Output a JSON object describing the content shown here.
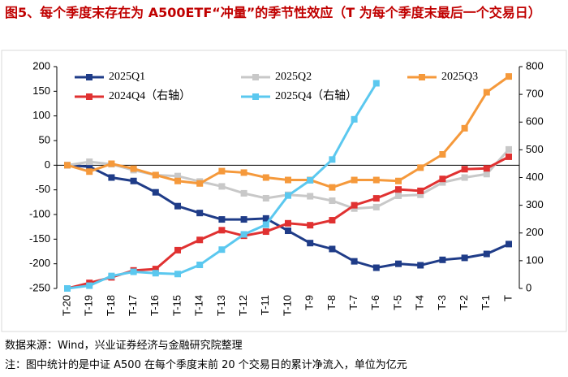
{
  "chart_data": {
    "type": "line",
    "title": "图5、每个季度末存在为 A500ETF“冲量”的季节性效应（T 为每个季度末最后一个交易日）",
    "categories": [
      "T-20",
      "T-19",
      "T-18",
      "T-17",
      "T-16",
      "T-15",
      "T-14",
      "T-13",
      "T-12",
      "T-11",
      "T-10",
      "T-9",
      "T-8",
      "T-7",
      "T-6",
      "T-5",
      "T-4",
      "T-3",
      "T-2",
      "T-1",
      "T"
    ],
    "series": [
      {
        "name": "2025Q1",
        "color": "#1f3c88",
        "values": [
          0,
          -3,
          -25,
          -32,
          -55,
          -83,
          -97,
          -110,
          -110,
          -108,
          -133,
          -158,
          -170,
          -195,
          -208,
          -200,
          -203,
          -192,
          -188,
          -180,
          -160
        ]
      },
      {
        "name": "2025Q2",
        "color": "#c8c8c8",
        "values": [
          0,
          7,
          2,
          -10,
          -20,
          -22,
          -33,
          -43,
          -57,
          -67,
          -60,
          -63,
          -72,
          -88,
          -85,
          -62,
          -60,
          -35,
          -25,
          -18,
          32
        ]
      },
      {
        "name": "2025Q3",
        "color": "#f5993b",
        "values": [
          0,
          -13,
          3,
          -7,
          -20,
          -32,
          -37,
          -12,
          -15,
          -25,
          -30,
          -30,
          -45,
          -30,
          -30,
          -32,
          -5,
          22,
          75,
          148,
          180
        ]
      },
      {
        "name": "2024Q4（右轴）",
        "color": "#e03131",
        "axis": "y2",
        "values": [
          0,
          20,
          40,
          65,
          70,
          138,
          175,
          210,
          190,
          205,
          235,
          228,
          246,
          300,
          325,
          357,
          352,
          395,
          430,
          433,
          475
        ]
      },
      {
        "name": "2025Q4（右轴）",
        "color": "#5bc8ef",
        "axis": "y2",
        "values": [
          0,
          10,
          45,
          60,
          55,
          52,
          85,
          140,
          195,
          230,
          335,
          390,
          465,
          610,
          740,
          null,
          null,
          null,
          null,
          null,
          null
        ]
      }
    ],
    "ylim": [
      -250,
      200
    ],
    "yticks": [
      -250,
      -200,
      -150,
      -100,
      -50,
      0,
      50,
      100,
      150,
      200
    ],
    "y2lim": [
      0,
      800
    ],
    "y2ticks": [
      0,
      100,
      200,
      300,
      400,
      500,
      600,
      700,
      800
    ],
    "source": "数据来源：Wind，兴业证券经济与金融研究院整理",
    "note": "注：图中统计的是中证 A500 在每个季度末前 20 个交易日的累计净流入，单位为亿元"
  }
}
